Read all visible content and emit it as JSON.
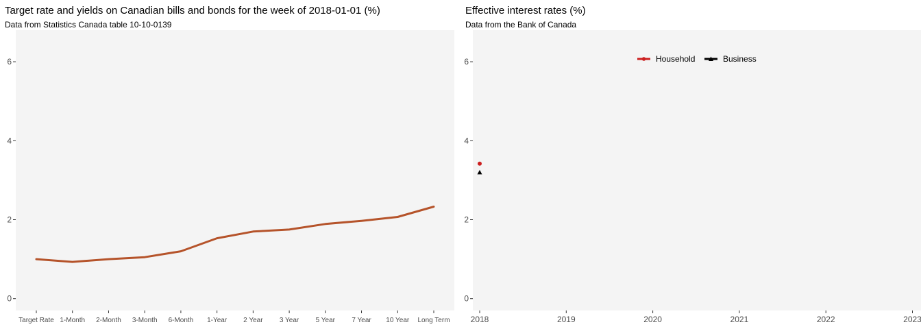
{
  "chart_data": [
    {
      "type": "line",
      "title": "Target rate and yields on Canadian bills and bonds for the week of 2018-01-01 (%)",
      "subtitle": "Data from Statistics Canada table 10-10-0139",
      "categories": [
        "Target Rate",
        "1-Month",
        "2-Month",
        "3-Month",
        "6-Month",
        "1-Year",
        "2 Year",
        "3 Year",
        "5 Year",
        "7 Year",
        "10 Year",
        "Long Term"
      ],
      "values": [
        1.0,
        0.93,
        1.0,
        1.05,
        1.2,
        1.53,
        1.7,
        1.75,
        1.89,
        1.97,
        2.07,
        2.33
      ],
      "ylim": [
        -0.3,
        6.8
      ],
      "yticks": [
        0,
        2,
        4,
        6
      ],
      "line_color": "#b5532a",
      "background": "#f4f4f4",
      "grid": false
    },
    {
      "type": "line",
      "title": "Effective interest rates (%)",
      "subtitle": "Data from the Bank of Canada",
      "xticks": [
        "2018",
        "2019",
        "2020",
        "2021",
        "2022",
        "2023"
      ],
      "xlim": [
        2018,
        2023
      ],
      "ylim": [
        -0.3,
        6.8
      ],
      "yticks": [
        0,
        2,
        4,
        6
      ],
      "legend_position": "top",
      "series": [
        {
          "name": "Household",
          "color": "#cc1f1f",
          "marker": "circle",
          "points": [
            {
              "x": 2018,
              "y": 3.42
            }
          ]
        },
        {
          "name": "Business",
          "color": "#000000",
          "marker": "triangle",
          "points": [
            {
              "x": 2018,
              "y": 3.2
            }
          ]
        }
      ],
      "background": "#f4f4f4",
      "grid": false
    }
  ]
}
